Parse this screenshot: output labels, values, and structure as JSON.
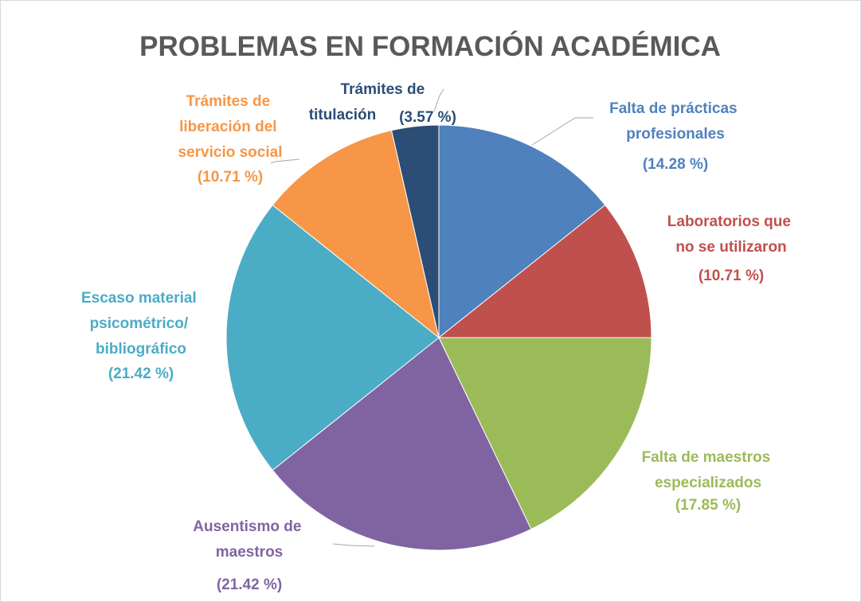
{
  "chart_data": {
    "type": "pie",
    "title": "PROBLEMAS EN FORMACIÓN ACADÉMICA",
    "categories": [
      "Falta de prácticas profesionales",
      "Laboratorios que no se utilizaron",
      "Falta de maestros especializados",
      "Ausentismo de maestros",
      "Escaso material psicométrico/ bibliográfico",
      "Trámites de liberación del servicio social",
      "Trámites de titulación"
    ],
    "values": [
      14.28,
      10.71,
      17.85,
      21.42,
      21.42,
      10.71,
      3.57
    ],
    "value_labels": [
      "(14.28 %)",
      "(10.71 %)",
      "(17.85 %)",
      "(21.42 %)",
      "(21.42 %)",
      "(10.71 %)",
      "(3.57 %)"
    ],
    "colors": [
      "#4f81bd",
      "#c0504d",
      "#9bbb59",
      "#8064a2",
      "#4bacc6",
      "#f79646",
      "#2c4d75"
    ]
  }
}
